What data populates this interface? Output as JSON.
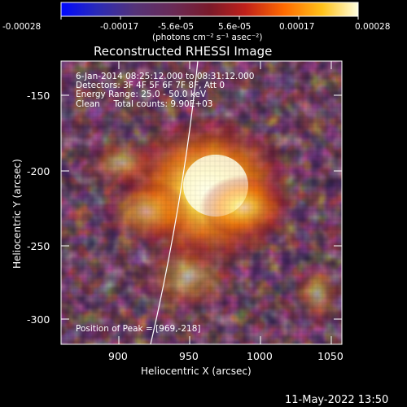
{
  "colorbar": {
    "ticks": [
      "-0.00028",
      "-0.00017",
      "-5.6e-05",
      "5.6e-05",
      "0.00017",
      "0.00028"
    ],
    "units": "(photons cm⁻² s⁻¹ asec⁻²)"
  },
  "title": "Reconstructed RHESSI Image",
  "info": {
    "time": "6-Jan-2014 08:25:12.000 to 08:31:12.000",
    "detectors": "Detectors: 3F 4F 5F 6F 7F 8F, Att 0",
    "energy": "Energy Range: 25.0 - 50.0 keV",
    "clean": "Clean     Total counts: 9.90E+03"
  },
  "peak": "Position of Peak = [969,-218]",
  "axes": {
    "xlabel": "Heliocentric X (arcsec)",
    "ylabel": "Heliocentric Y (arcsec)",
    "xticks": [
      "900",
      "950",
      "1000",
      "1050"
    ],
    "yticks": [
      "-150",
      "-200",
      "-250",
      "-300"
    ]
  },
  "footer": "11-May-2022 13:50",
  "colors": {
    "background": "#000000",
    "axis": "#ffffff"
  }
}
